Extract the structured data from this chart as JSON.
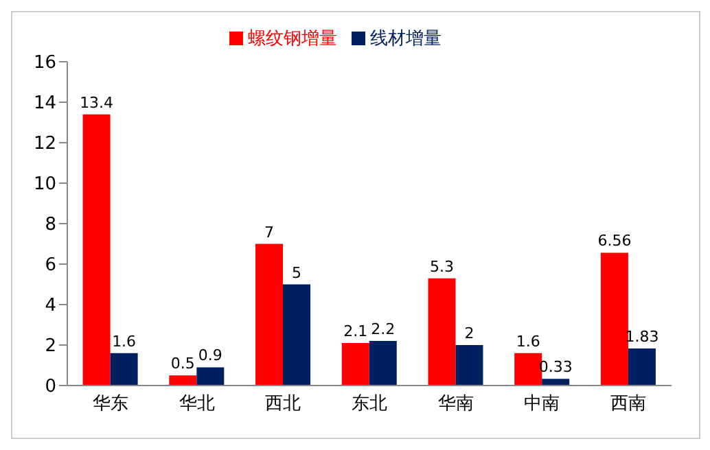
{
  "chart_data": {
    "type": "bar",
    "categories": [
      "华东",
      "华北",
      "西北",
      "东北",
      "华南",
      "中南",
      "西南"
    ],
    "series": [
      {
        "name": "螺纹钢增量",
        "color": "#ff0000",
        "values": [
          13.4,
          0.5,
          7,
          2.1,
          5.3,
          1.6,
          6.56
        ]
      },
      {
        "name": "线材增量",
        "color": "#002060",
        "values": [
          1.6,
          0.9,
          5,
          2.2,
          2,
          0.33,
          1.83
        ]
      }
    ],
    "ylim": [
      0,
      16
    ],
    "yticks": [
      0,
      2,
      4,
      6,
      8,
      10,
      12,
      14,
      16
    ],
    "grid": false,
    "legend": "top",
    "data_labels": true
  }
}
